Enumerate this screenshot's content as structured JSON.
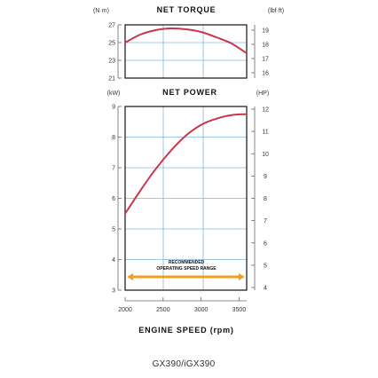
{
  "colors": {
    "curve": "#c8364a",
    "grid": "#7fb6e0",
    "frame": "#111111",
    "band": "#f0a020"
  },
  "model": "GX390/iGX390",
  "chart_data": [
    {
      "type": "line",
      "title": "NET TORQUE",
      "left_unit": "(N·m)",
      "right_unit": "(lbf·ft)",
      "ylim": [
        21,
        27
      ],
      "y_ticks": [
        21,
        23,
        25,
        27
      ],
      "y2_ticks": [
        16,
        17,
        18,
        19
      ],
      "xlim": [
        2000,
        3600
      ],
      "series": [
        {
          "x": [
            2000,
            2200,
            2400,
            2600,
            2800,
            3000,
            3200,
            3400,
            3600
          ],
          "values": [
            25.0,
            25.9,
            26.4,
            26.6,
            26.5,
            26.2,
            25.6,
            24.9,
            23.8
          ]
        }
      ]
    },
    {
      "type": "line",
      "title": "NET POWER",
      "left_unit": "(kW)",
      "right_unit": "(HP)",
      "ylim": [
        3,
        9
      ],
      "y_ticks": [
        3,
        4,
        5,
        6,
        7,
        8,
        9
      ],
      "y2_ticks": [
        4,
        5,
        6,
        7,
        8,
        9,
        10,
        11,
        12
      ],
      "xlim": [
        2000,
        3600
      ],
      "xlabel": "ENGINE SPEED (rpm)",
      "x_ticks": [
        2000,
        2500,
        3000,
        3500
      ],
      "band": {
        "label_line1": "RECOMMENDED",
        "label_line2": "OPERATING SPEED RANGE",
        "from": 2000,
        "to": 3600
      },
      "series": [
        {
          "x": [
            2000,
            2200,
            2400,
            2600,
            2800,
            3000,
            3200,
            3400,
            3600
          ],
          "values": [
            5.5,
            6.25,
            6.95,
            7.55,
            8.05,
            8.4,
            8.6,
            8.72,
            8.75
          ]
        }
      ]
    }
  ]
}
